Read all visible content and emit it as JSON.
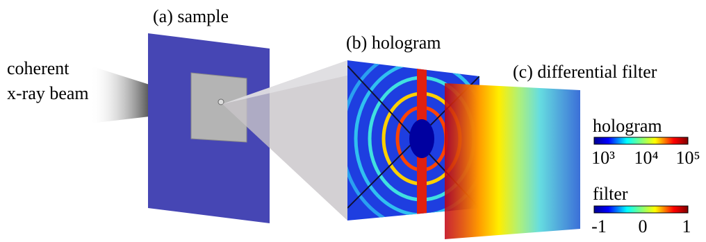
{
  "labels": {
    "sample": "(a) sample",
    "hologram": "(b) hologram",
    "filter": "(c) differential filter",
    "beam_line1": "coherent",
    "beam_line2": "x-ray beam"
  },
  "colorbars": [
    {
      "title": "hologram",
      "ticks": [
        "10³",
        "10⁴",
        "10⁵"
      ]
    },
    {
      "title": "filter",
      "ticks": [
        "-1",
        "0",
        "1"
      ]
    }
  ]
}
